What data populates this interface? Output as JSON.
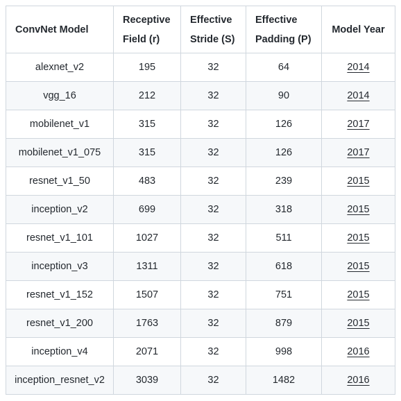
{
  "table": {
    "headers": [
      {
        "line1": "ConvNet Model",
        "line2": ""
      },
      {
        "line1": "Receptive",
        "line2": "Field (r)"
      },
      {
        "line1": "Effective",
        "line2": "Stride (S)"
      },
      {
        "line1": "Effective",
        "line2": "Padding (P)"
      },
      {
        "line1": "Model Year",
        "line2": ""
      }
    ],
    "rows": [
      {
        "model": "alexnet_v2",
        "field": "195",
        "stride": "32",
        "padding": "64",
        "year": "2014"
      },
      {
        "model": "vgg_16",
        "field": "212",
        "stride": "32",
        "padding": "90",
        "year": "2014"
      },
      {
        "model": "mobilenet_v1",
        "field": "315",
        "stride": "32",
        "padding": "126",
        "year": "2017"
      },
      {
        "model": "mobilenet_v1_075",
        "field": "315",
        "stride": "32",
        "padding": "126",
        "year": "2017"
      },
      {
        "model": "resnet_v1_50",
        "field": "483",
        "stride": "32",
        "padding": "239",
        "year": "2015"
      },
      {
        "model": "inception_v2",
        "field": "699",
        "stride": "32",
        "padding": "318",
        "year": "2015"
      },
      {
        "model": "resnet_v1_101",
        "field": "1027",
        "stride": "32",
        "padding": "511",
        "year": "2015"
      },
      {
        "model": "inception_v3",
        "field": "1311",
        "stride": "32",
        "padding": "618",
        "year": "2015"
      },
      {
        "model": "resnet_v1_152",
        "field": "1507",
        "stride": "32",
        "padding": "751",
        "year": "2015"
      },
      {
        "model": "resnet_v1_200",
        "field": "1763",
        "stride": "32",
        "padding": "879",
        "year": "2015"
      },
      {
        "model": "inception_v4",
        "field": "2071",
        "stride": "32",
        "padding": "998",
        "year": "2016"
      },
      {
        "model": "inception_resnet_v2",
        "field": "3039",
        "stride": "32",
        "padding": "1482",
        "year": "2016"
      }
    ]
  }
}
